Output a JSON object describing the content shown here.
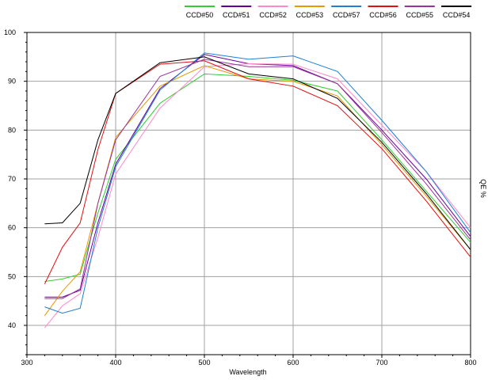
{
  "chart_data": {
    "type": "line",
    "xlabel": "Wavelength",
    "ylabel": "QE %",
    "xlim": [
      300,
      800
    ],
    "ylim": [
      34,
      100
    ],
    "x_ticks": [
      300,
      400,
      500,
      600,
      700,
      800
    ],
    "y_ticks": [
      40,
      50,
      60,
      70,
      80,
      90,
      100
    ],
    "grid": true,
    "legend_position": "top-right",
    "series": [
      {
        "name": "CCD#50",
        "color": "#33cc33",
        "points": [
          [
            320,
            49
          ],
          [
            340,
            49.5
          ],
          [
            360,
            50.5
          ],
          [
            380,
            63
          ],
          [
            400,
            74
          ],
          [
            450,
            85.5
          ],
          [
            500,
            91.5
          ],
          [
            550,
            91
          ],
          [
            600,
            90.2
          ],
          [
            650,
            88
          ],
          [
            700,
            78
          ],
          [
            750,
            67.5
          ],
          [
            800,
            57
          ]
        ]
      },
      {
        "name": "CCD#51",
        "color": "#660099",
        "points": [
          [
            320,
            45.8
          ],
          [
            340,
            45.8
          ],
          [
            360,
            47.2
          ],
          [
            380,
            61
          ],
          [
            400,
            73
          ],
          [
            450,
            88.5
          ],
          [
            500,
            95.5
          ],
          [
            550,
            93.6
          ],
          [
            600,
            93.2
          ],
          [
            650,
            89.5
          ],
          [
            700,
            80
          ],
          [
            750,
            70
          ],
          [
            800,
            58.2
          ]
        ]
      },
      {
        "name": "CCD#52",
        "color": "#ff88cc",
        "points": [
          [
            320,
            39.5
          ],
          [
            340,
            44
          ],
          [
            360,
            46.5
          ],
          [
            380,
            58
          ],
          [
            400,
            71
          ],
          [
            450,
            84.5
          ],
          [
            500,
            93
          ],
          [
            550,
            93.6
          ],
          [
            600,
            93.5
          ],
          [
            650,
            90.5
          ],
          [
            700,
            81
          ],
          [
            750,
            71.5
          ],
          [
            800,
            60
          ]
        ]
      },
      {
        "name": "CCD#53",
        "color": "#e69900",
        "points": [
          [
            320,
            42
          ],
          [
            340,
            47
          ],
          [
            360,
            51
          ],
          [
            380,
            65
          ],
          [
            400,
            78.5
          ],
          [
            450,
            89
          ],
          [
            500,
            93.2
          ],
          [
            550,
            90.5
          ],
          [
            600,
            90
          ],
          [
            650,
            87
          ],
          [
            700,
            77
          ],
          [
            750,
            66.5
          ],
          [
            800,
            55.5
          ]
        ]
      },
      {
        "name": "CCD#57",
        "color": "#1e7fd6",
        "points": [
          [
            320,
            43.8
          ],
          [
            340,
            42.5
          ],
          [
            360,
            43.5
          ],
          [
            380,
            60
          ],
          [
            400,
            72.5
          ],
          [
            450,
            88.2
          ],
          [
            500,
            95.8
          ],
          [
            550,
            94.5
          ],
          [
            600,
            95.2
          ],
          [
            650,
            92
          ],
          [
            700,
            82
          ],
          [
            750,
            71.5
          ],
          [
            800,
            59
          ]
        ]
      },
      {
        "name": "CCD#56",
        "color": "#e01010",
        "points": [
          [
            320,
            48.5
          ],
          [
            340,
            56
          ],
          [
            360,
            61
          ],
          [
            380,
            76
          ],
          [
            400,
            87.5
          ],
          [
            450,
            93.5
          ],
          [
            500,
            94.2
          ],
          [
            550,
            90.5
          ],
          [
            600,
            89
          ],
          [
            650,
            85
          ],
          [
            700,
            76.2
          ],
          [
            750,
            65.5
          ],
          [
            800,
            54
          ]
        ]
      },
      {
        "name": "CCD#55",
        "color": "#993399",
        "points": [
          [
            320,
            45.5
          ],
          [
            340,
            45.5
          ],
          [
            360,
            47.5
          ],
          [
            380,
            65
          ],
          [
            400,
            78
          ],
          [
            450,
            91
          ],
          [
            500,
            94.5
          ],
          [
            550,
            93
          ],
          [
            600,
            93
          ],
          [
            650,
            89.5
          ],
          [
            700,
            79.5
          ],
          [
            750,
            69
          ],
          [
            800,
            57.5
          ]
        ]
      },
      {
        "name": "CCD#54",
        "color": "#000000",
        "points": [
          [
            320,
            60.8
          ],
          [
            340,
            61
          ],
          [
            360,
            65
          ],
          [
            380,
            78
          ],
          [
            400,
            87.5
          ],
          [
            450,
            93.8
          ],
          [
            500,
            95
          ],
          [
            550,
            91.5
          ],
          [
            600,
            90.5
          ],
          [
            650,
            86.5
          ],
          [
            700,
            77.5
          ],
          [
            750,
            67
          ],
          [
            800,
            55.5
          ]
        ]
      }
    ]
  }
}
